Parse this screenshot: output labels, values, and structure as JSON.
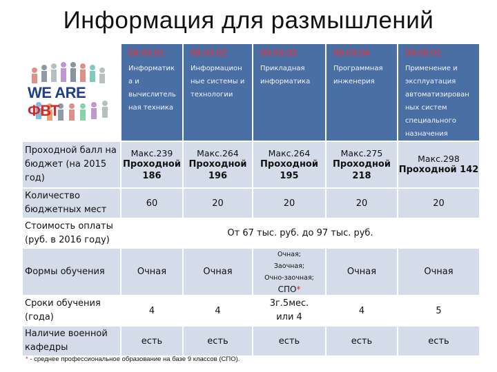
{
  "title": "Информация для размышлений",
  "logo": {
    "part1": "WE ARE ",
    "part2": "ФВТ"
  },
  "programs": [
    {
      "code": "09.03.01",
      "name": "Информатик а и вычислитель ная техника"
    },
    {
      "code": "09.03.02",
      "name": "Информацион ные системы и технологии"
    },
    {
      "code": "09.03.03",
      "name": "Прикладная информатика"
    },
    {
      "code": "09.03.04",
      "name": "Программная инженерия"
    },
    {
      "code": "09.05.01",
      "name": "Применение и эксплуатация автоматизирован ных систем специального назначения"
    }
  ],
  "rows": {
    "passing": {
      "label": "Проходной балл на бюджет (на 2015 год)",
      "values": [
        {
          "max": "Макс.239",
          "pass": "Проходной 186"
        },
        {
          "max": "Макс.264",
          "pass": "Проходной 196"
        },
        {
          "max": "Макс.264",
          "pass": "Проходной 195"
        },
        {
          "max": "Макс.275",
          "pass": "Проходной 218"
        },
        {
          "max": "Макс.298",
          "pass": "Проходной 142"
        }
      ]
    },
    "places": {
      "label": "Количество бюджетных мест",
      "values": [
        "60",
        "20",
        "20",
        "20",
        "20"
      ]
    },
    "cost": {
      "label": "Стоимость оплаты (руб. в 2016 году)",
      "value": "От 67 тыс. руб. до 97 тыс. руб."
    },
    "forms": {
      "label": "Формы обучения",
      "values": [
        "Очная",
        "Очная",
        "",
        "Очная",
        "Очная"
      ],
      "special": {
        "line1": "Очная;",
        "line2": "Заочная;",
        "line3": "Очно-заочная;",
        "line4": "СПО",
        "star": "*"
      }
    },
    "terms": {
      "label": "Сроки обучения (года)",
      "values": [
        "4",
        "4",
        "3г.5мес. или 4",
        "4",
        "5"
      ]
    },
    "military": {
      "label": "Наличие военной кафедры",
      "values": [
        "есть",
        "есть",
        "есть",
        "есть",
        "есть"
      ]
    }
  },
  "footnote": {
    "star": "*",
    "text": " - среднее профессиональное образование на базе 9 классов (СПО)."
  }
}
